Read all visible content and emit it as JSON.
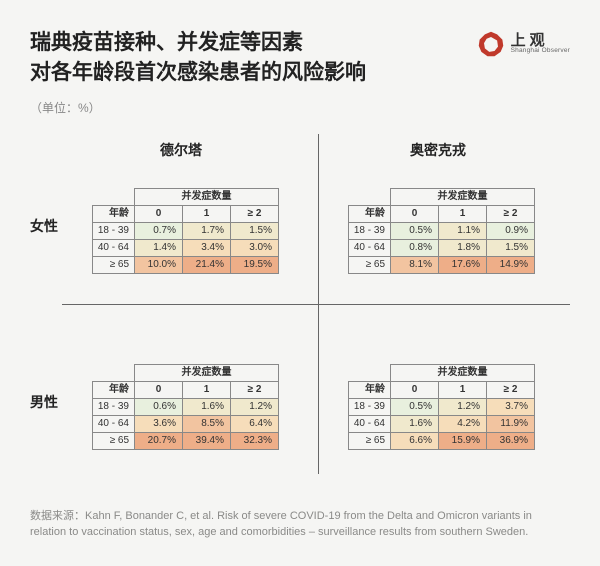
{
  "title_line1": "瑞典疫苗接种、并发症等因素",
  "title_line2": "对各年龄段首次感染患者的风险影响",
  "unit": "（单位：%）",
  "logo": {
    "cn": "上观",
    "en": "Shanghai Observer"
  },
  "col_headers": [
    "德尔塔",
    "奥密克戎"
  ],
  "row_headers": [
    "女性",
    "男性"
  ],
  "table_super_header": "并发症数量",
  "table_age_header": "年龄",
  "table_col_labels": [
    "0",
    "1",
    "≥ 2"
  ],
  "age_rows": [
    "18 - 39",
    "40 - 64",
    "≥ 65"
  ],
  "heat_palette": {
    "low": "#e8f0de",
    "lowmid": "#f0e9cd",
    "mid": "#f6ddba",
    "high": "#f2c4a0",
    "vhigh": "#eeae88"
  },
  "tables": {
    "female_delta": {
      "rows": [
        {
          "vals": [
            "0.7%",
            "1.7%",
            "1.5%"
          ],
          "colors": [
            "low",
            "lowmid",
            "lowmid"
          ]
        },
        {
          "vals": [
            "1.4%",
            "3.4%",
            "3.0%"
          ],
          "colors": [
            "lowmid",
            "mid",
            "mid"
          ]
        },
        {
          "vals": [
            "10.0%",
            "21.4%",
            "19.5%"
          ],
          "colors": [
            "high",
            "vhigh",
            "vhigh"
          ]
        }
      ]
    },
    "female_omicron": {
      "rows": [
        {
          "vals": [
            "0.5%",
            "1.1%",
            "0.9%"
          ],
          "colors": [
            "low",
            "lowmid",
            "low"
          ]
        },
        {
          "vals": [
            "0.8%",
            "1.8%",
            "1.5%"
          ],
          "colors": [
            "low",
            "lowmid",
            "lowmid"
          ]
        },
        {
          "vals": [
            "8.1%",
            "17.6%",
            "14.9%"
          ],
          "colors": [
            "high",
            "vhigh",
            "vhigh"
          ]
        }
      ]
    },
    "male_delta": {
      "rows": [
        {
          "vals": [
            "0.6%",
            "1.6%",
            "1.2%"
          ],
          "colors": [
            "low",
            "lowmid",
            "lowmid"
          ]
        },
        {
          "vals": [
            "3.6%",
            "8.5%",
            "6.4%"
          ],
          "colors": [
            "mid",
            "high",
            "mid"
          ]
        },
        {
          "vals": [
            "20.7%",
            "39.4%",
            "32.3%"
          ],
          "colors": [
            "vhigh",
            "vhigh",
            "vhigh"
          ]
        }
      ]
    },
    "male_omicron": {
      "rows": [
        {
          "vals": [
            "0.5%",
            "1.2%",
            "3.7%"
          ],
          "colors": [
            "low",
            "lowmid",
            "mid"
          ]
        },
        {
          "vals": [
            "1.6%",
            "4.2%",
            "11.9%"
          ],
          "colors": [
            "lowmid",
            "mid",
            "high"
          ]
        },
        {
          "vals": [
            "6.6%",
            "15.9%",
            "36.9%"
          ],
          "colors": [
            "mid",
            "vhigh",
            "vhigh"
          ]
        }
      ]
    }
  },
  "source_label": "数据来源：",
  "source_text": "Kahn F, Bonander C, et al. Risk of severe COVID-19 from the Delta and Omicron variants in relation to vaccination status, sex, age and comorbidities – surveillance results from southern Sweden."
}
